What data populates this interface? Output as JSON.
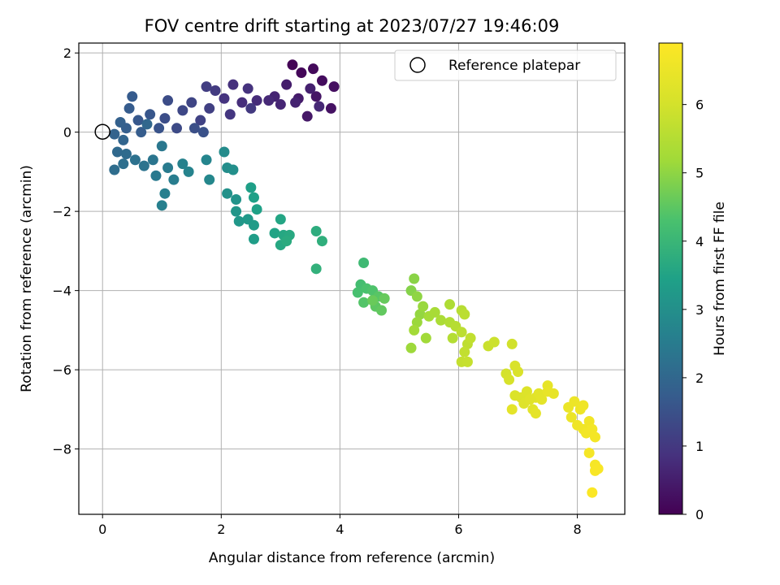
{
  "chart_data": {
    "type": "scatter",
    "title": "FOV centre drift starting at 2023/07/27 19:46:09",
    "xlabel": "Angular distance from reference (arcmin)",
    "ylabel": "Rotation from reference (arcmin)",
    "xlim": [
      -0.4,
      8.8
    ],
    "ylim": [
      -9.65,
      2.25
    ],
    "xticks": [
      0,
      2,
      4,
      6,
      8
    ],
    "yticks": [
      2,
      0,
      -2,
      -4,
      -6,
      -8
    ],
    "grid": true,
    "legend": {
      "position": "top-right",
      "entries": [
        "Reference platepar"
      ]
    },
    "reference_point": {
      "x": 0,
      "y": 0,
      "label": "Reference platepar"
    },
    "colorbar": {
      "label": "Hours from first FF file",
      "range": [
        0,
        6.9
      ],
      "ticks": [
        0,
        1,
        2,
        3,
        4,
        5,
        6
      ],
      "colormap": "viridis"
    },
    "series": [
      {
        "color_by": "hours",
        "points": [
          {
            "x": 3.2,
            "y": 1.7,
            "h": 0.05
          },
          {
            "x": 3.35,
            "y": 1.5,
            "h": 0.1
          },
          {
            "x": 3.55,
            "y": 1.6,
            "h": 0.15
          },
          {
            "x": 3.7,
            "y": 1.3,
            "h": 0.2
          },
          {
            "x": 3.9,
            "y": 1.15,
            "h": 0.25
          },
          {
            "x": 3.85,
            "y": 0.6,
            "h": 0.3
          },
          {
            "x": 3.6,
            "y": 0.9,
            "h": 0.35
          },
          {
            "x": 3.45,
            "y": 0.4,
            "h": 0.4
          },
          {
            "x": 3.3,
            "y": 0.85,
            "h": 0.45
          },
          {
            "x": 3.1,
            "y": 1.2,
            "h": 0.5
          },
          {
            "x": 3.5,
            "y": 1.1,
            "h": 0.55
          },
          {
            "x": 3.25,
            "y": 0.75,
            "h": 0.6
          },
          {
            "x": 2.9,
            "y": 0.9,
            "h": 0.62
          },
          {
            "x": 3.0,
            "y": 0.7,
            "h": 0.65
          },
          {
            "x": 3.65,
            "y": 0.65,
            "h": 0.68
          },
          {
            "x": 2.8,
            "y": 0.8,
            "h": 0.7
          },
          {
            "x": 2.6,
            "y": 0.8,
            "h": 0.75
          },
          {
            "x": 2.35,
            "y": 0.75,
            "h": 0.8
          },
          {
            "x": 2.2,
            "y": 1.2,
            "h": 0.85
          },
          {
            "x": 2.45,
            "y": 1.1,
            "h": 0.88
          },
          {
            "x": 2.05,
            "y": 0.85,
            "h": 0.9
          },
          {
            "x": 2.15,
            "y": 0.45,
            "h": 0.95
          },
          {
            "x": 2.5,
            "y": 0.6,
            "h": 1.0
          },
          {
            "x": 1.9,
            "y": 1.05,
            "h": 1.05
          },
          {
            "x": 1.75,
            "y": 1.15,
            "h": 1.1
          },
          {
            "x": 1.8,
            "y": 0.6,
            "h": 1.15
          },
          {
            "x": 1.65,
            "y": 0.3,
            "h": 1.2
          },
          {
            "x": 1.5,
            "y": 0.75,
            "h": 1.25
          },
          {
            "x": 1.35,
            "y": 0.55,
            "h": 1.3
          },
          {
            "x": 1.25,
            "y": 0.1,
            "h": 1.35
          },
          {
            "x": 1.1,
            "y": 0.8,
            "h": 1.4
          },
          {
            "x": 1.05,
            "y": 0.35,
            "h": 1.42
          },
          {
            "x": 1.55,
            "y": 0.1,
            "h": 1.45
          },
          {
            "x": 1.7,
            "y": 0.0,
            "h": 1.5
          },
          {
            "x": 0.95,
            "y": 0.1,
            "h": 1.55
          },
          {
            "x": 0.8,
            "y": 0.45,
            "h": 1.6
          },
          {
            "x": 0.6,
            "y": 0.3,
            "h": 1.65
          },
          {
            "x": 0.5,
            "y": 0.9,
            "h": 1.7
          },
          {
            "x": 0.45,
            "y": 0.6,
            "h": 1.72
          },
          {
            "x": 0.65,
            "y": 0.0,
            "h": 1.75
          },
          {
            "x": 0.4,
            "y": 0.1,
            "h": 1.8
          },
          {
            "x": 0.3,
            "y": 0.25,
            "h": 1.85
          },
          {
            "x": 0.2,
            "y": -0.05,
            "h": 1.9
          },
          {
            "x": 0.35,
            "y": -0.2,
            "h": 1.95
          },
          {
            "x": 0.75,
            "y": 0.2,
            "h": 2.0
          },
          {
            "x": 0.25,
            "y": -0.5,
            "h": 2.05
          },
          {
            "x": 0.4,
            "y": -0.55,
            "h": 2.1
          },
          {
            "x": 0.2,
            "y": -0.95,
            "h": 2.15
          },
          {
            "x": 0.35,
            "y": -0.8,
            "h": 2.2
          },
          {
            "x": 0.55,
            "y": -0.7,
            "h": 2.25
          },
          {
            "x": 0.7,
            "y": -0.85,
            "h": 2.3
          },
          {
            "x": 0.85,
            "y": -0.7,
            "h": 2.35
          },
          {
            "x": 1.0,
            "y": -0.35,
            "h": 2.4
          },
          {
            "x": 0.9,
            "y": -1.1,
            "h": 2.45
          },
          {
            "x": 1.1,
            "y": -0.9,
            "h": 2.5
          },
          {
            "x": 1.2,
            "y": -1.2,
            "h": 2.55
          },
          {
            "x": 1.05,
            "y": -1.55,
            "h": 2.6
          },
          {
            "x": 1.0,
            "y": -1.85,
            "h": 2.62
          },
          {
            "x": 1.35,
            "y": -0.8,
            "h": 2.65
          },
          {
            "x": 1.45,
            "y": -1.0,
            "h": 2.7
          },
          {
            "x": 1.75,
            "y": -0.7,
            "h": 2.75
          },
          {
            "x": 1.8,
            "y": -1.2,
            "h": 2.8
          },
          {
            "x": 2.05,
            "y": -0.5,
            "h": 2.9
          },
          {
            "x": 2.1,
            "y": -0.9,
            "h": 2.95
          },
          {
            "x": 2.2,
            "y": -0.95,
            "h": 3.0
          },
          {
            "x": 2.1,
            "y": -1.55,
            "h": 3.05
          },
          {
            "x": 2.25,
            "y": -1.7,
            "h": 3.1
          },
          {
            "x": 2.25,
            "y": -2.0,
            "h": 3.15
          },
          {
            "x": 2.3,
            "y": -2.25,
            "h": 3.2
          },
          {
            "x": 2.45,
            "y": -2.2,
            "h": 3.25
          },
          {
            "x": 2.55,
            "y": -2.35,
            "h": 3.3
          },
          {
            "x": 2.55,
            "y": -2.7,
            "h": 3.35
          },
          {
            "x": 2.5,
            "y": -1.4,
            "h": 3.4
          },
          {
            "x": 2.55,
            "y": -1.65,
            "h": 3.42
          },
          {
            "x": 2.6,
            "y": -1.95,
            "h": 3.45
          },
          {
            "x": 2.9,
            "y": -2.55,
            "h": 3.5
          },
          {
            "x": 3.0,
            "y": -2.2,
            "h": 3.55
          },
          {
            "x": 3.05,
            "y": -2.6,
            "h": 3.6
          },
          {
            "x": 3.0,
            "y": -2.85,
            "h": 3.62
          },
          {
            "x": 3.15,
            "y": -2.6,
            "h": 3.65
          },
          {
            "x": 3.1,
            "y": -2.75,
            "h": 3.7
          },
          {
            "x": 3.6,
            "y": -2.5,
            "h": 3.75
          },
          {
            "x": 3.7,
            "y": -2.75,
            "h": 3.8
          },
          {
            "x": 3.6,
            "y": -3.45,
            "h": 3.85
          },
          {
            "x": 4.4,
            "y": -3.3,
            "h": 4.1
          },
          {
            "x": 4.35,
            "y": -3.85,
            "h": 4.2
          },
          {
            "x": 4.3,
            "y": -4.05,
            "h": 4.25
          },
          {
            "x": 4.45,
            "y": -3.95,
            "h": 4.3
          },
          {
            "x": 4.55,
            "y": -4.0,
            "h": 4.35
          },
          {
            "x": 4.4,
            "y": -4.3,
            "h": 4.4
          },
          {
            "x": 4.65,
            "y": -4.15,
            "h": 4.45
          },
          {
            "x": 4.6,
            "y": -4.4,
            "h": 4.5
          },
          {
            "x": 4.7,
            "y": -4.5,
            "h": 4.55
          },
          {
            "x": 4.75,
            "y": -4.2,
            "h": 4.6
          },
          {
            "x": 4.55,
            "y": -4.25,
            "h": 4.62
          },
          {
            "x": 5.2,
            "y": -4.0,
            "h": 4.9
          },
          {
            "x": 5.25,
            "y": -3.7,
            "h": 4.95
          },
          {
            "x": 5.3,
            "y": -4.15,
            "h": 5.0
          },
          {
            "x": 5.35,
            "y": -4.6,
            "h": 5.05
          },
          {
            "x": 5.4,
            "y": -4.4,
            "h": 5.1
          },
          {
            "x": 5.3,
            "y": -4.8,
            "h": 5.12
          },
          {
            "x": 5.2,
            "y": -5.45,
            "h": 5.15
          },
          {
            "x": 5.45,
            "y": -5.2,
            "h": 5.2
          },
          {
            "x": 5.25,
            "y": -5.0,
            "h": 5.22
          },
          {
            "x": 5.5,
            "y": -4.65,
            "h": 5.25
          },
          {
            "x": 5.6,
            "y": -4.55,
            "h": 5.3
          },
          {
            "x": 5.7,
            "y": -4.75,
            "h": 5.35
          },
          {
            "x": 5.85,
            "y": -4.35,
            "h": 5.4
          },
          {
            "x": 5.85,
            "y": -4.8,
            "h": 5.45
          },
          {
            "x": 5.9,
            "y": -5.2,
            "h": 5.5
          },
          {
            "x": 5.95,
            "y": -4.9,
            "h": 5.52
          },
          {
            "x": 6.05,
            "y": -4.5,
            "h": 5.55
          },
          {
            "x": 6.1,
            "y": -4.6,
            "h": 5.6
          },
          {
            "x": 6.05,
            "y": -5.05,
            "h": 5.62
          },
          {
            "x": 6.15,
            "y": -5.35,
            "h": 5.65
          },
          {
            "x": 6.2,
            "y": -5.2,
            "h": 5.7
          },
          {
            "x": 6.1,
            "y": -5.55,
            "h": 5.72
          },
          {
            "x": 6.05,
            "y": -5.8,
            "h": 5.75
          },
          {
            "x": 6.15,
            "y": -5.8,
            "h": 5.78
          },
          {
            "x": 6.5,
            "y": -5.4,
            "h": 5.85
          },
          {
            "x": 6.6,
            "y": -5.3,
            "h": 5.88
          },
          {
            "x": 6.9,
            "y": -5.35,
            "h": 5.95
          },
          {
            "x": 6.8,
            "y": -6.1,
            "h": 6.0
          },
          {
            "x": 6.85,
            "y": -6.25,
            "h": 6.05
          },
          {
            "x": 6.95,
            "y": -5.9,
            "h": 6.1
          },
          {
            "x": 7.0,
            "y": -6.05,
            "h": 6.12
          },
          {
            "x": 6.95,
            "y": -6.65,
            "h": 6.15
          },
          {
            "x": 7.05,
            "y": -6.7,
            "h": 6.18
          },
          {
            "x": 7.15,
            "y": -6.55,
            "h": 6.2
          },
          {
            "x": 7.1,
            "y": -6.85,
            "h": 6.22
          },
          {
            "x": 7.2,
            "y": -6.75,
            "h": 6.25
          },
          {
            "x": 7.3,
            "y": -6.7,
            "h": 6.28
          },
          {
            "x": 7.25,
            "y": -7.0,
            "h": 6.3
          },
          {
            "x": 7.35,
            "y": -6.6,
            "h": 6.32
          },
          {
            "x": 7.4,
            "y": -6.75,
            "h": 6.34
          },
          {
            "x": 6.9,
            "y": -7.0,
            "h": 6.35
          },
          {
            "x": 7.3,
            "y": -7.1,
            "h": 6.37
          },
          {
            "x": 7.5,
            "y": -6.4,
            "h": 6.4
          },
          {
            "x": 7.6,
            "y": -6.6,
            "h": 6.42
          },
          {
            "x": 7.5,
            "y": -6.55,
            "h": 6.44
          },
          {
            "x": 7.85,
            "y": -6.95,
            "h": 6.5
          },
          {
            "x": 7.9,
            "y": -7.2,
            "h": 6.52
          },
          {
            "x": 7.95,
            "y": -6.8,
            "h": 6.54
          },
          {
            "x": 8.05,
            "y": -7.0,
            "h": 6.56
          },
          {
            "x": 8.1,
            "y": -6.9,
            "h": 6.58
          },
          {
            "x": 8.0,
            "y": -7.4,
            "h": 6.6
          },
          {
            "x": 8.1,
            "y": -7.5,
            "h": 6.62
          },
          {
            "x": 8.2,
            "y": -7.3,
            "h": 6.64
          },
          {
            "x": 8.15,
            "y": -7.6,
            "h": 6.66
          },
          {
            "x": 8.25,
            "y": -7.5,
            "h": 6.68
          },
          {
            "x": 8.3,
            "y": -7.7,
            "h": 6.7
          },
          {
            "x": 8.2,
            "y": -8.1,
            "h": 6.72
          },
          {
            "x": 8.3,
            "y": -8.4,
            "h": 6.75
          },
          {
            "x": 8.35,
            "y": -8.5,
            "h": 6.78
          },
          {
            "x": 8.3,
            "y": -8.55,
            "h": 6.8
          },
          {
            "x": 8.25,
            "y": -9.1,
            "h": 6.85
          }
        ]
      }
    ]
  }
}
